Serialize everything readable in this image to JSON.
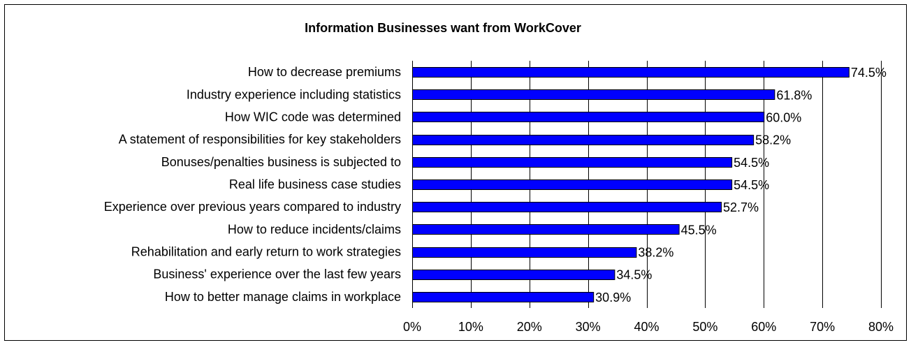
{
  "chart_data": {
    "type": "bar",
    "orientation": "horizontal",
    "title": "Information Businesses want from WorkCover",
    "xlabel": "",
    "ylabel": "",
    "categories": [
      "How to decrease premiums",
      "Industry experience including statistics",
      "How WIC code was determined",
      "A statement of responsibilities for key stakeholders",
      "Bonuses/penalties business is subjected to",
      "Real life business case studies",
      "Experience over previous years compared to industry",
      "How to reduce incidents/claims",
      "Rehabilitation and early return to work strategies",
      "Business' experience over the last few years",
      "How to better manage claims in workplace"
    ],
    "values": [
      74.5,
      61.8,
      60.0,
      58.2,
      54.5,
      54.5,
      52.7,
      45.5,
      38.2,
      34.5,
      30.9
    ],
    "data_labels": [
      "74.5%",
      "61.8%",
      "60.0%",
      "58.2%",
      "54.5%",
      "54.5%",
      "52.7%",
      "45.5%",
      "38.2%",
      "34.5%",
      "30.9%"
    ],
    "xlim": [
      0,
      80
    ],
    "xticks": [
      0,
      10,
      20,
      30,
      40,
      50,
      60,
      70,
      80
    ],
    "xtick_labels": [
      "0%",
      "10%",
      "20%",
      "30%",
      "40%",
      "50%",
      "60%",
      "70%",
      "80%"
    ],
    "grid": "vertical",
    "legend": "none",
    "bar_color": "#0000ff",
    "bar_edge_color": "#000000",
    "grid_color": "#000000"
  }
}
